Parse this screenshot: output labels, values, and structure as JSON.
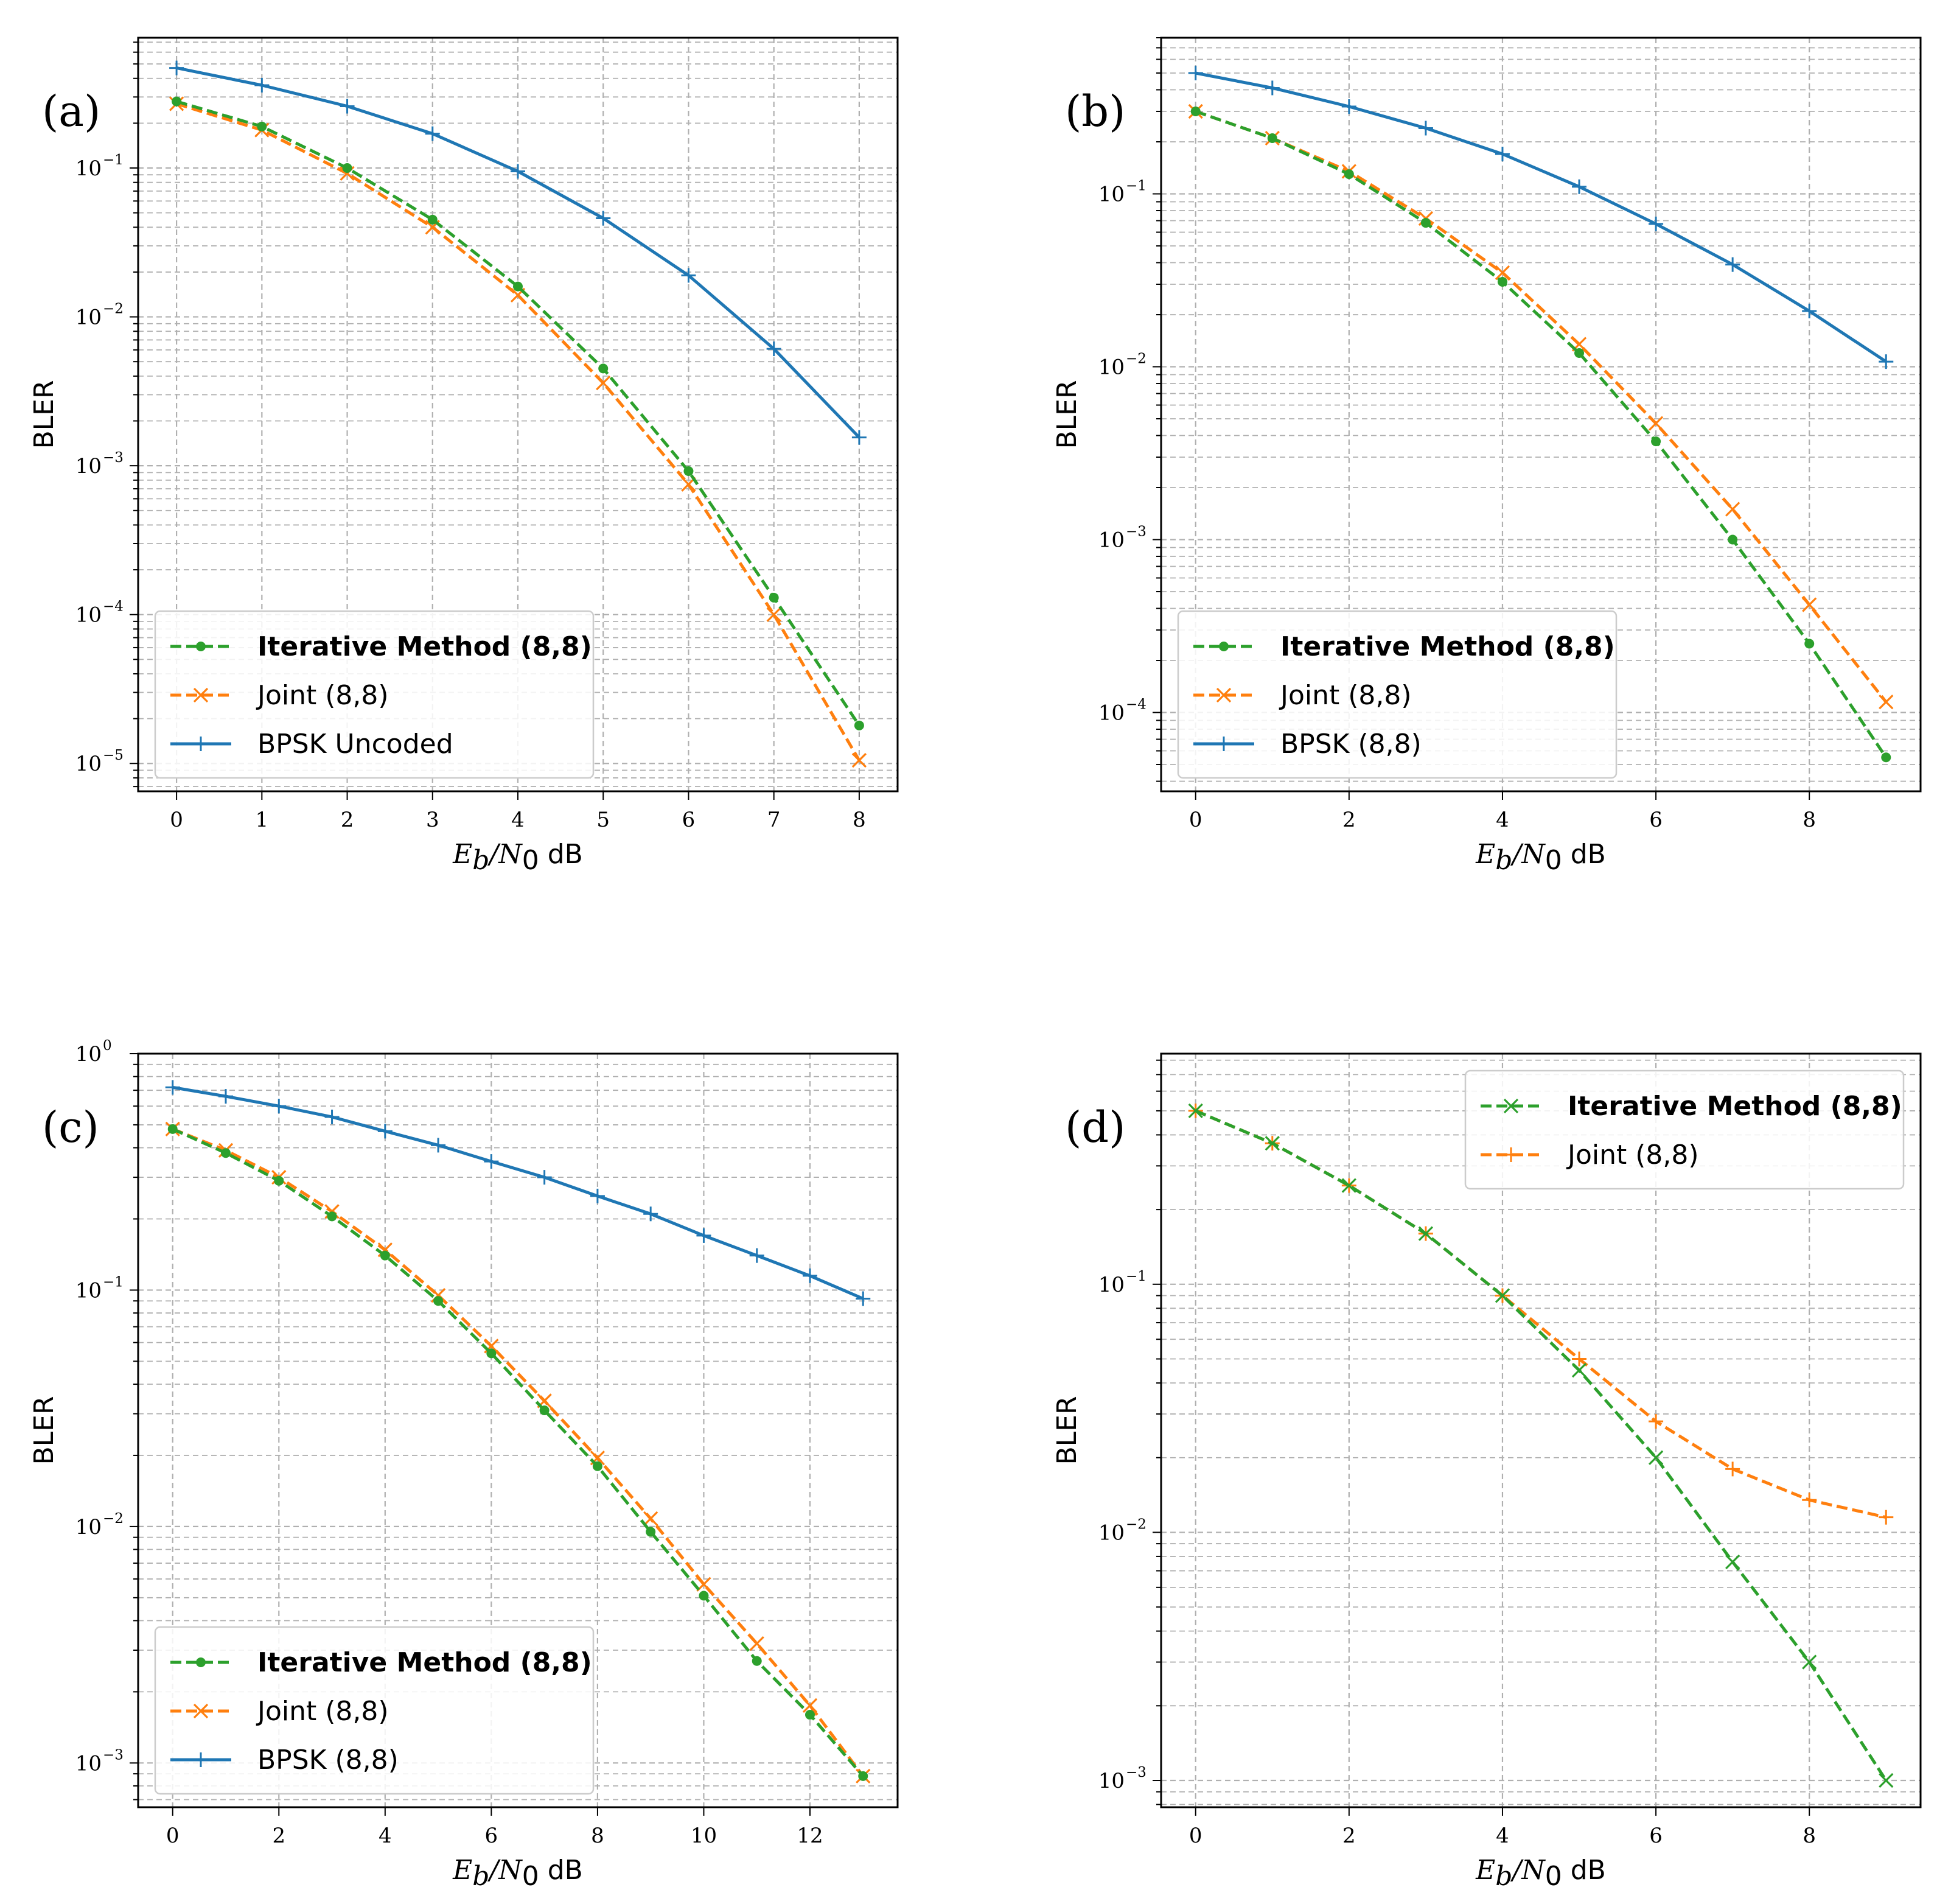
{
  "colors": {
    "green": "#2ca02c",
    "orange": "#ff7f0e",
    "blue": "#1f77b4",
    "grid": "#b0b0b0"
  },
  "chart_data": [
    {
      "panel": "(a)",
      "type": "line",
      "yscale": "log",
      "xlabel_math": "E_b/N_0",
      "xlabel_unit": "dB",
      "ylabel": "BLER",
      "xlim": [
        -0.45,
        8.45
      ],
      "ylim": [
        6.5e-06,
        0.75
      ],
      "xticks": [
        0,
        1,
        2,
        3,
        4,
        5,
        6,
        7,
        8
      ],
      "xtick_labels": [
        "0",
        "1",
        "2",
        "3",
        "4",
        "5",
        "6",
        "7",
        "8"
      ],
      "yticks_exp": [
        -5,
        -4,
        -3,
        -2,
        -1
      ],
      "grid": true,
      "legend_loc": "lower-left",
      "series": [
        {
          "name": "Iterative Method (8,8)",
          "bold": true,
          "color": "green",
          "style": "dashed",
          "marker": "dot",
          "x": [
            0,
            1,
            2,
            3,
            4,
            5,
            6,
            7,
            8
          ],
          "y": [
            0.28,
            0.19,
            0.1,
            0.045,
            0.016,
            0.0045,
            0.00092,
            0.00013,
            1.8e-05
          ]
        },
        {
          "name": "Joint (8,8)",
          "bold": false,
          "color": "orange",
          "style": "dashed",
          "marker": "x",
          "x": [
            0,
            1,
            2,
            3,
            4,
            5,
            6,
            7,
            8
          ],
          "y": [
            0.27,
            0.18,
            0.092,
            0.04,
            0.014,
            0.0036,
            0.00075,
            0.0001,
            1.05e-05
          ]
        },
        {
          "name": "BPSK Uncoded",
          "bold": false,
          "color": "blue",
          "style": "solid",
          "marker": "plus",
          "x": [
            0,
            1,
            2,
            3,
            4,
            5,
            6,
            7,
            8
          ],
          "y": [
            0.47,
            0.36,
            0.26,
            0.17,
            0.095,
            0.046,
            0.019,
            0.0061,
            0.00155
          ]
        }
      ]
    },
    {
      "panel": "(b)",
      "type": "line",
      "yscale": "log",
      "xlabel_math": "E_b/N_0",
      "xlabel_unit": "dB",
      "ylabel": "BLER",
      "xlim": [
        -0.45,
        9.45
      ],
      "ylim": [
        3.5e-05,
        0.8
      ],
      "xticks": [
        0,
        2,
        4,
        6,
        8
      ],
      "xtick_labels": [
        "0",
        "2",
        "4",
        "6",
        "8"
      ],
      "yticks_exp": [
        -4,
        -3,
        -2,
        -1
      ],
      "grid": true,
      "legend_loc": "lower-left",
      "series": [
        {
          "name": "Iterative Method (8,8)",
          "bold": true,
          "color": "green",
          "style": "dashed",
          "marker": "dot",
          "x": [
            0,
            1,
            2,
            3,
            4,
            5,
            6,
            7,
            8,
            9
          ],
          "y": [
            0.3,
            0.21,
            0.13,
            0.068,
            0.031,
            0.012,
            0.0037,
            0.001,
            0.00025,
            5.5e-05
          ]
        },
        {
          "name": "Joint (8,8)",
          "bold": false,
          "color": "orange",
          "style": "dashed",
          "marker": "x",
          "x": [
            0,
            1,
            2,
            3,
            4,
            5,
            6,
            7,
            8,
            9
          ],
          "y": [
            0.3,
            0.21,
            0.135,
            0.072,
            0.035,
            0.0135,
            0.0047,
            0.0015,
            0.00042,
            0.000115
          ]
        },
        {
          "name": "BPSK (8,8)",
          "bold": false,
          "color": "blue",
          "style": "solid",
          "marker": "plus",
          "x": [
            0,
            1,
            2,
            3,
            4,
            5,
            6,
            7,
            8,
            9
          ],
          "y": [
            0.5,
            0.41,
            0.32,
            0.24,
            0.17,
            0.11,
            0.067,
            0.039,
            0.021,
            0.0107
          ]
        }
      ]
    },
    {
      "panel": "(c)",
      "type": "line",
      "yscale": "log",
      "xlabel_math": "E_b/N_0",
      "xlabel_unit": "dB",
      "ylabel": "BLER",
      "xlim": [
        -0.65,
        13.65
      ],
      "ylim": [
        0.00065,
        1.0
      ],
      "xticks": [
        0,
        2,
        4,
        6,
        8,
        10,
        12
      ],
      "xtick_labels": [
        "0",
        "2",
        "4",
        "6",
        "8",
        "10",
        "12"
      ],
      "yticks_exp": [
        -3,
        -2,
        -1,
        0
      ],
      "grid": true,
      "legend_loc": "lower-left",
      "series": [
        {
          "name": "Iterative Method (8,8)",
          "bold": true,
          "color": "green",
          "style": "dashed",
          "marker": "dot",
          "x": [
            0,
            1,
            2,
            3,
            4,
            5,
            6,
            7,
            8,
            9,
            10,
            11,
            12,
            13
          ],
          "y": [
            0.48,
            0.38,
            0.29,
            0.205,
            0.14,
            0.09,
            0.054,
            0.031,
            0.018,
            0.0095,
            0.0051,
            0.0027,
            0.0016,
            0.00088
          ]
        },
        {
          "name": "Joint (8,8)",
          "bold": false,
          "color": "orange",
          "style": "dashed",
          "marker": "x",
          "x": [
            0,
            1,
            2,
            3,
            4,
            5,
            6,
            7,
            8,
            9,
            10,
            11,
            12,
            13
          ],
          "y": [
            0.48,
            0.39,
            0.3,
            0.215,
            0.148,
            0.095,
            0.058,
            0.034,
            0.0195,
            0.0108,
            0.0057,
            0.0032,
            0.00175,
            0.00088
          ]
        },
        {
          "name": "BPSK (8,8)",
          "bold": false,
          "color": "blue",
          "style": "solid",
          "marker": "plus",
          "x": [
            0,
            1,
            2,
            3,
            4,
            5,
            6,
            7,
            8,
            9,
            10,
            11,
            12,
            13
          ],
          "y": [
            0.72,
            0.66,
            0.6,
            0.54,
            0.47,
            0.41,
            0.35,
            0.3,
            0.25,
            0.21,
            0.17,
            0.14,
            0.115,
            0.092
          ]
        }
      ]
    },
    {
      "panel": "(d)",
      "type": "line",
      "yscale": "log",
      "xlabel_math": "E_b/N_0",
      "xlabel_unit": "dB",
      "ylabel": "BLER",
      "xlim": [
        -0.45,
        9.45
      ],
      "ylim": [
        0.00078,
        0.85
      ],
      "xticks": [
        0,
        2,
        4,
        6,
        8
      ],
      "xtick_labels": [
        "0",
        "2",
        "4",
        "6",
        "8"
      ],
      "yticks_exp": [
        -3,
        -2,
        -1
      ],
      "grid": true,
      "legend_loc": "upper-right",
      "series": [
        {
          "name": "Iterative Method (8,8)",
          "bold": true,
          "color": "green",
          "style": "dashed",
          "marker": "x",
          "x": [
            0,
            1,
            2,
            3,
            4,
            5,
            6,
            7,
            8,
            9
          ],
          "y": [
            0.5,
            0.37,
            0.25,
            0.16,
            0.09,
            0.045,
            0.02,
            0.0076,
            0.003,
            0.001
          ]
        },
        {
          "name": "Joint (8,8)",
          "bold": false,
          "color": "orange",
          "style": "dashed",
          "marker": "plus",
          "x": [
            0,
            1,
            2,
            3,
            4,
            5,
            6,
            7,
            8,
            9
          ],
          "y": [
            0.5,
            0.37,
            0.25,
            0.16,
            0.09,
            0.05,
            0.028,
            0.018,
            0.0135,
            0.0115
          ]
        }
      ]
    }
  ]
}
